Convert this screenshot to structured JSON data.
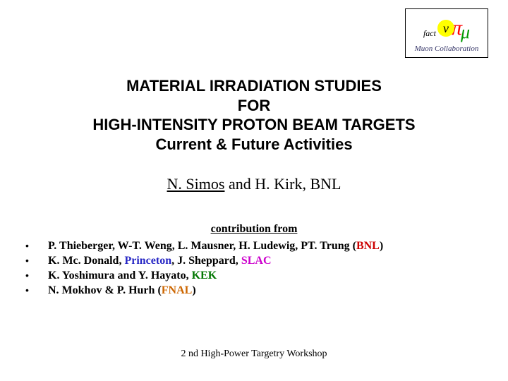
{
  "logo": {
    "fact": "fact",
    "nu": "ν",
    "pi": "π",
    "mu": "μ",
    "caption": "Muon Collaboration"
  },
  "title": {
    "line1": "MATERIAL IRRADIATION STUDIES",
    "line2": "FOR",
    "line3": "HIGH-INTENSITY PROTON BEAM TARGETS",
    "line4": "Current & Future Activities"
  },
  "authors": {
    "lead": "N. Simos",
    "rest": " and H. Kirk, BNL"
  },
  "contribution_label": "contribution from",
  "contributors": [
    {
      "names": "P. Thieberger, W-T. Weng, L. Mausner, H. Ludewig, PT. Trung ",
      "affil_open": "(",
      "affil": "BNL",
      "affil_close": ")",
      "affil_class": "bnl"
    },
    {
      "names": "K. Mc. Donald, ",
      "affil": "Princeton",
      "affil_close": " ",
      "extra": ", J. Sheppard, ",
      "affil2": "SLAC",
      "affil_class": "princeton",
      "affil2_class": "slac"
    },
    {
      "names": "K. Yoshimura and Y. Hayato, ",
      "affil": "KEK",
      "affil_class": "kek"
    },
    {
      "names": "N. Mokhov & P. Hurh ",
      "affil_open": "(",
      "affil": "FNAL",
      "affil_close": ")",
      "affil_class": "fnal"
    }
  ],
  "footer": "2 nd High-Power Targetry Workshop",
  "colors": {
    "bnl": "#cc0000",
    "princeton": "#2727c5",
    "slac": "#cc00cc",
    "kek": "#007700",
    "fnal": "#cc6600",
    "background": "#ffffff"
  }
}
